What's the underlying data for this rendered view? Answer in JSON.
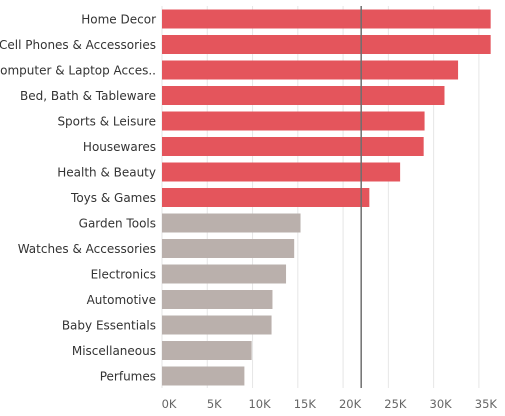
{
  "chart_data": {
    "type": "bar",
    "orientation": "horizontal",
    "title": "",
    "xlabel": "",
    "ylabel": "",
    "categories": [
      "Home Decor",
      "Cell Phones & Accessories",
      "Computer & Laptop Acces..",
      "Bed, Bath & Tableware",
      "Sports & Leisure",
      "Housewares",
      "Health & Beauty",
      "Toys & Games",
      "Garden Tools",
      "Watches & Accessories",
      "Electronics",
      "Automotive",
      "Baby Essentials",
      "Miscellaneous",
      "Perfumes"
    ],
    "values": [
      36300,
      36300,
      32700,
      31200,
      29000,
      28900,
      26300,
      22900,
      15300,
      14600,
      13700,
      12200,
      12100,
      9900,
      9100
    ],
    "xlim": [
      0,
      37000
    ],
    "x_ticks": [
      0,
      5000,
      10000,
      15000,
      20000,
      25000,
      30000,
      35000
    ],
    "x_tick_labels": [
      "0K",
      "5K",
      "10K",
      "15K",
      "20K",
      "25K",
      "30K",
      "35K"
    ],
    "reference_line": 22000,
    "colors": {
      "above_reference": "#e4555c",
      "below_reference": "#bab0ac",
      "reference_line": "#6f6f6f",
      "grid": "#e6e6e6"
    },
    "grid": true,
    "legend": "none"
  }
}
